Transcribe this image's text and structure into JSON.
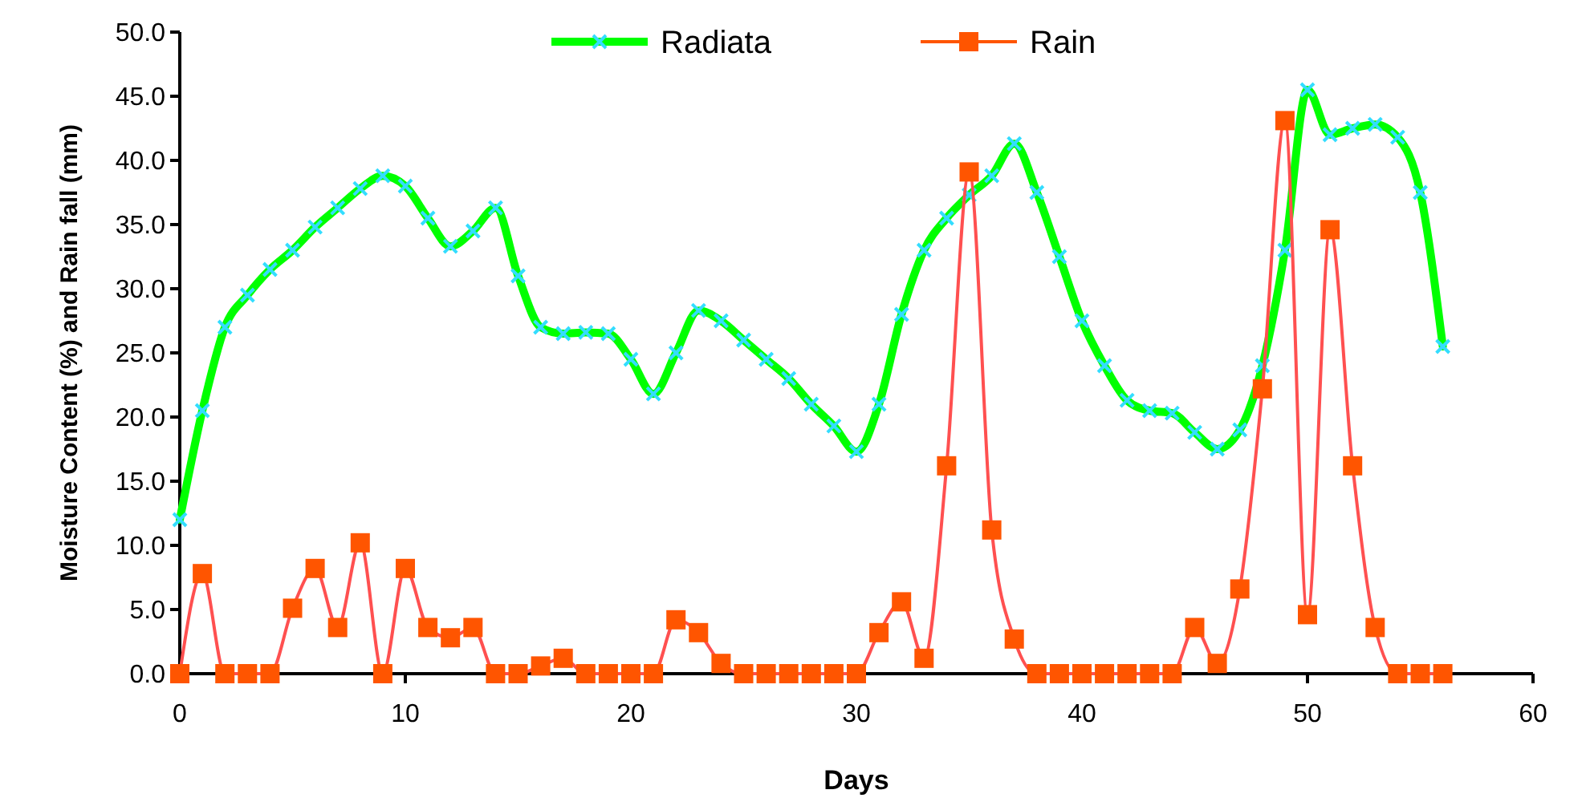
{
  "chart_data": {
    "type": "line",
    "xlabel": "Days",
    "ylabel": "Moisture Content (%) and Rain fall (mm)",
    "xlim": [
      0,
      60
    ],
    "xticks": [
      0,
      10,
      20,
      30,
      40,
      50,
      60
    ],
    "ylim": [
      0,
      50
    ],
    "yticks": [
      {
        "value": 0,
        "label": "0.0"
      },
      {
        "value": 5,
        "label": "5.0"
      },
      {
        "value": 10,
        "label": "10.0"
      },
      {
        "value": 15,
        "label": "15.0"
      },
      {
        "value": 20,
        "label": "20.0"
      },
      {
        "value": 25,
        "label": "25.0"
      },
      {
        "value": 30,
        "label": "30.0"
      },
      {
        "value": 35,
        "label": "35.0"
      },
      {
        "value": 40,
        "label": "40.0"
      },
      {
        "value": 45,
        "label": "45.0"
      },
      {
        "value": 50,
        "label": "50.0"
      }
    ],
    "grid": false,
    "legend": "top",
    "x": [
      0,
      1,
      2,
      3,
      4,
      5,
      6,
      7,
      8,
      9,
      10,
      11,
      12,
      13,
      14,
      15,
      16,
      17,
      18,
      19,
      20,
      21,
      22,
      23,
      24,
      25,
      26,
      27,
      28,
      29,
      30,
      31,
      32,
      33,
      34,
      35,
      36,
      37,
      38,
      39,
      40,
      41,
      42,
      43,
      44,
      45,
      46,
      47,
      48,
      49,
      50,
      51,
      52,
      53,
      54,
      55,
      56
    ],
    "series": [
      {
        "name": "Radiata",
        "color": "#00ff00",
        "marker": "cross",
        "values": [
          12.0,
          20.5,
          27.0,
          29.5,
          31.5,
          33.0,
          34.8,
          36.3,
          37.8,
          38.8,
          38.0,
          35.5,
          33.3,
          34.5,
          36.3,
          31.0,
          27.0,
          26.5,
          26.6,
          26.5,
          24.5,
          21.8,
          25.0,
          28.3,
          27.5,
          26.0,
          24.5,
          23.0,
          21.0,
          19.3,
          17.3,
          21.0,
          28.0,
          33.0,
          35.5,
          37.3,
          38.8,
          41.3,
          37.5,
          32.5,
          27.5,
          24.0,
          21.3,
          20.5,
          20.3,
          18.8,
          17.5,
          19.0,
          24.0,
          33.0,
          45.5,
          42.0,
          42.5,
          42.8,
          41.8,
          37.5,
          25.5
        ]
      },
      {
        "name": "Rain",
        "color": "#ff5500",
        "marker": "square",
        "values": [
          0,
          7.8,
          0,
          0,
          0,
          5.1,
          8.2,
          3.6,
          10.2,
          0,
          8.2,
          3.6,
          2.8,
          3.6,
          0,
          0,
          0.6,
          1.2,
          0,
          0,
          0,
          0,
          4.2,
          3.2,
          0.8,
          0,
          0,
          0,
          0,
          0,
          0,
          3.2,
          5.6,
          1.2,
          16.2,
          39.1,
          11.2,
          2.7,
          0,
          0,
          0,
          0,
          0,
          0,
          0,
          3.6,
          0.8,
          6.6,
          22.2,
          43.1,
          4.6,
          34.6,
          16.2,
          3.6,
          0,
          0,
          0
        ]
      }
    ]
  }
}
